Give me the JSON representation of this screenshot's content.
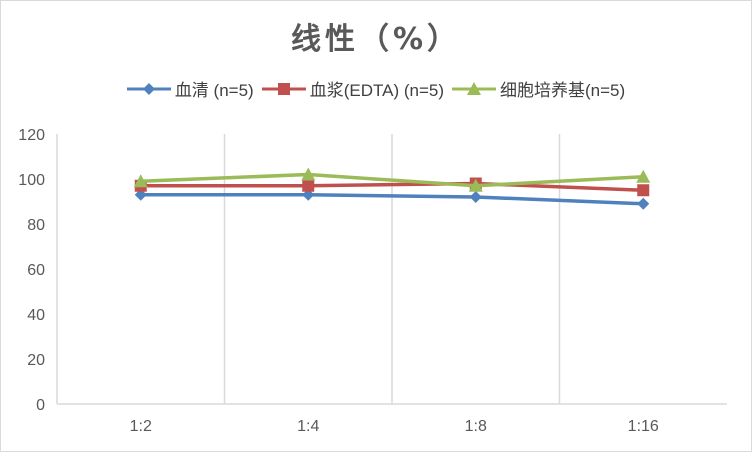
{
  "chart_data": {
    "type": "line",
    "title": "线性（%）",
    "categories": [
      "1:2",
      "1:4",
      "1:8",
      "1:16"
    ],
    "series": [
      {
        "name": "血清 (n=5)",
        "values": [
          93,
          93,
          92,
          89
        ],
        "color": "#4f81bd",
        "marker": "diamond"
      },
      {
        "name": "血浆(EDTA) (n=5)",
        "values": [
          97,
          97,
          98,
          95
        ],
        "color": "#c0504d",
        "marker": "square"
      },
      {
        "name": "细胞培养基(n=5)",
        "values": [
          99,
          102,
          97,
          101
        ],
        "color": "#9bbb59",
        "marker": "triangle"
      }
    ],
    "ylim": [
      0,
      120
    ],
    "yticks": [
      "0",
      "20",
      "40",
      "60",
      "80",
      "100",
      "120"
    ],
    "grid": "vertical",
    "legend": "top-center",
    "colors": {
      "axis": "#d9d9d9",
      "grid": "#d9d9d9",
      "text": "#595959"
    }
  }
}
